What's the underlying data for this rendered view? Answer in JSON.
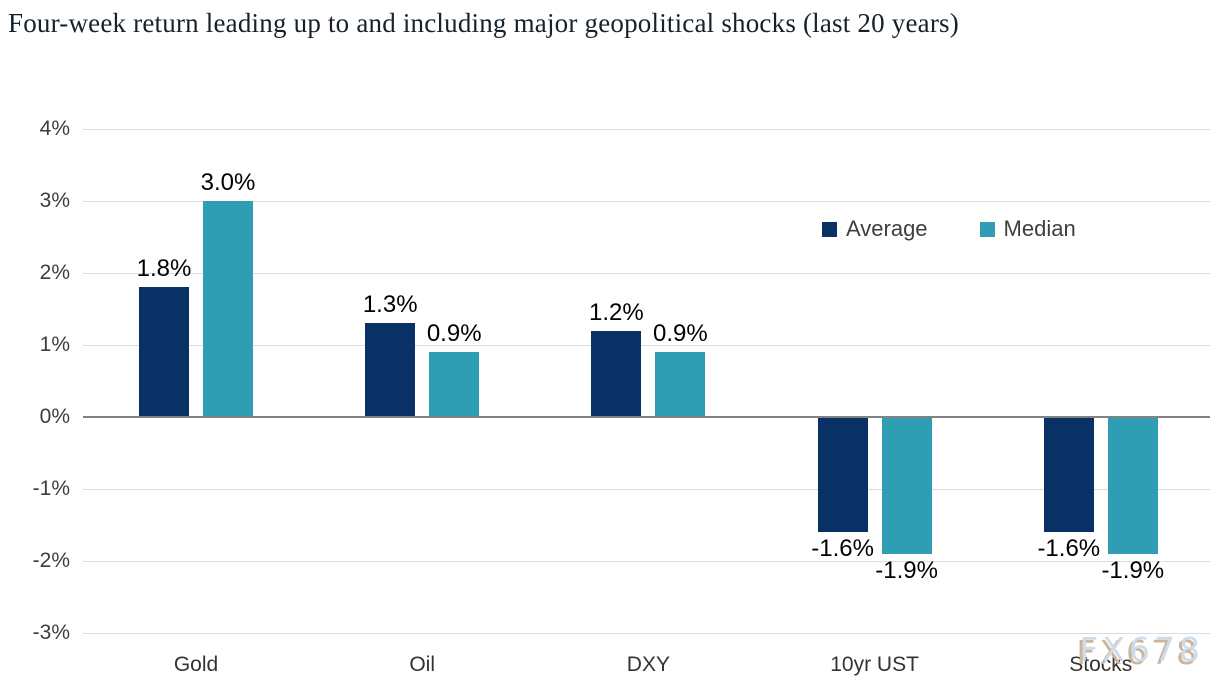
{
  "title": "Four-week return leading up to and including major geopolitical shocks (last 20 years)",
  "watermark": "FX678",
  "legend": [
    {
      "label": "Average",
      "color": "#093166"
    },
    {
      "label": "Median",
      "color": "#2F9DB3"
    }
  ],
  "colors": {
    "average_bar": "#093166",
    "median_bar": "#2F9DB3",
    "gridline": "#dcdcdc",
    "zero_line": "#828282"
  },
  "chart_data": {
    "type": "bar",
    "title": "Four-week return leading up to and including major geopolitical shocks (last 20 years)",
    "categories": [
      "Gold",
      "Oil",
      "DXY",
      "10yr UST",
      "Stocks"
    ],
    "series": [
      {
        "name": "Average",
        "color": "#093166",
        "values": [
          1.8,
          1.3,
          1.2,
          -1.6,
          -1.6
        ],
        "labels": [
          "1.8%",
          "1.3%",
          "1.2%",
          "-1.6%",
          "-1.6%"
        ]
      },
      {
        "name": "Median",
        "color": "#2F9DB3",
        "values": [
          3.0,
          0.9,
          0.9,
          -1.9,
          -1.9
        ],
        "labels": [
          "3.0%",
          "0.9%",
          "0.9%",
          "-1.9%",
          "-1.9%"
        ]
      }
    ],
    "xlabel": "",
    "ylabel": "",
    "ylim": [
      -3,
      4
    ],
    "yticks": [
      4,
      3,
      2,
      1,
      0,
      -1,
      -2,
      -3
    ],
    "ytick_labels": [
      "4%",
      "3%",
      "2%",
      "1%",
      "0%",
      "-1%",
      "-2%",
      "-3%"
    ],
    "grid": true,
    "legend_position": "inside-upper-right",
    "data_labels_shown": true
  }
}
